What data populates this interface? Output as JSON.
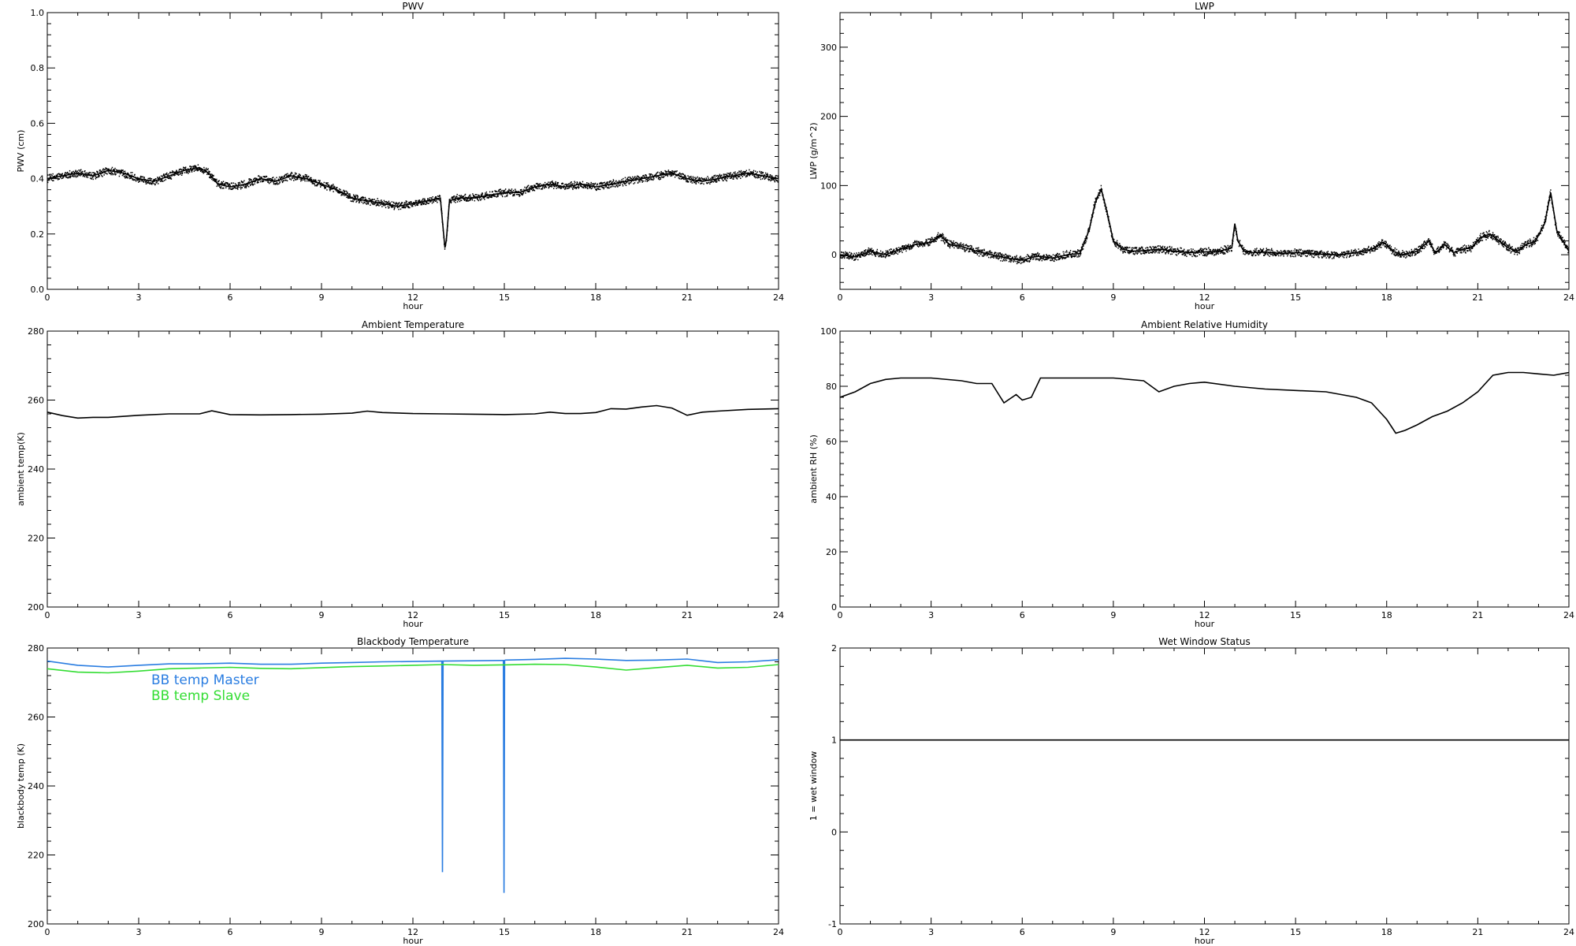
{
  "chart_data": [
    {
      "type": "scatter",
      "title": "PWV",
      "xlabel": "hour",
      "ylabel": "PWV (cm)",
      "xlim": [
        0,
        24
      ],
      "ylim": [
        0.0,
        1.0
      ],
      "xticks": [
        "0",
        "3",
        "6",
        "9",
        "12",
        "15",
        "18",
        "21",
        "24"
      ],
      "yticks": [
        "0.0",
        "0.2",
        "0.4",
        "0.6",
        "0.8",
        "1.0"
      ],
      "grid": false,
      "color": "#000000",
      "series": [
        {
          "x": [
            0,
            0.5,
            1,
            1.5,
            2,
            2.5,
            3,
            3.5,
            4,
            4.5,
            5,
            5.3,
            5.6,
            6,
            6.5,
            7,
            7.5,
            8,
            8.5,
            9,
            9.5,
            10,
            10.5,
            11,
            11.5,
            12,
            12.5,
            12.9,
            13.05,
            13.1,
            13.2,
            13.5,
            14,
            14.5,
            15,
            15.5,
            16,
            16.5,
            17,
            17.5,
            18,
            18.5,
            19,
            19.5,
            20,
            20.5,
            21,
            21.5,
            22,
            22.5,
            23,
            23.5,
            24
          ],
          "y": [
            0.4,
            0.41,
            0.42,
            0.41,
            0.43,
            0.42,
            0.4,
            0.39,
            0.41,
            0.43,
            0.44,
            0.42,
            0.38,
            0.37,
            0.38,
            0.4,
            0.39,
            0.41,
            0.4,
            0.38,
            0.36,
            0.33,
            0.32,
            0.31,
            0.3,
            0.31,
            0.32,
            0.33,
            0.15,
            0.18,
            0.32,
            0.33,
            0.33,
            0.34,
            0.35,
            0.35,
            0.37,
            0.38,
            0.37,
            0.38,
            0.37,
            0.38,
            0.39,
            0.4,
            0.41,
            0.42,
            0.4,
            0.39,
            0.4,
            0.41,
            0.42,
            0.41,
            0.4
          ]
        }
      ]
    },
    {
      "type": "scatter",
      "title": "LWP",
      "xlabel": "hour",
      "ylabel": "LWP (g/m^2)",
      "xlim": [
        0,
        24
      ],
      "ylim": [
        -50,
        350
      ],
      "xticks": [
        "0",
        "3",
        "6",
        "9",
        "12",
        "15",
        "18",
        "21",
        "24"
      ],
      "yticks": [
        "0",
        "100",
        "200",
        "300"
      ],
      "grid": false,
      "color": "#000000",
      "series": [
        {
          "x": [
            0,
            0.5,
            1,
            1.5,
            2,
            2.5,
            3,
            3.3,
            3.6,
            4,
            4.5,
            5,
            5.5,
            6,
            6.5,
            7,
            7.5,
            7.9,
            8.2,
            8.4,
            8.6,
            8.8,
            9.0,
            9.3,
            9.6,
            10,
            10.5,
            11,
            11.5,
            12,
            12.5,
            12.9,
            13.0,
            13.1,
            13.3,
            13.6,
            14,
            14.5,
            15,
            15.5,
            16,
            16.5,
            17,
            17.5,
            17.9,
            18.2,
            18.5,
            19,
            19.4,
            19.6,
            19.9,
            20.2,
            20.5,
            20.8,
            21.1,
            21.4,
            21.7,
            22.0,
            22.3,
            22.6,
            22.9,
            23.2,
            23.4,
            23.6,
            23.8,
            24
          ],
          "y": [
            0,
            -3,
            5,
            0,
            8,
            15,
            18,
            28,
            15,
            12,
            5,
            0,
            -5,
            -8,
            -2,
            -5,
            0,
            2,
            35,
            75,
            95,
            60,
            20,
            8,
            5,
            6,
            8,
            5,
            3,
            4,
            5,
            10,
            45,
            20,
            5,
            3,
            4,
            2,
            3,
            2,
            0,
            0,
            3,
            8,
            18,
            5,
            0,
            5,
            20,
            2,
            15,
            3,
            8,
            10,
            25,
            30,
            20,
            10,
            5,
            15,
            20,
            45,
            90,
            35,
            20,
            5
          ]
        }
      ]
    },
    {
      "type": "line",
      "title": "Ambient Temperature",
      "xlabel": "hour",
      "ylabel": "ambient temp(K)",
      "xlim": [
        0,
        24
      ],
      "ylim": [
        200,
        280
      ],
      "xticks": [
        "0",
        "3",
        "6",
        "9",
        "12",
        "15",
        "18",
        "21",
        "24"
      ],
      "yticks": [
        "200",
        "220",
        "240",
        "260",
        "280"
      ],
      "grid": false,
      "color": "#000000",
      "series": [
        {
          "x": [
            0,
            0.5,
            1,
            1.5,
            2,
            3,
            4,
            5,
            5.4,
            6,
            7,
            8,
            9,
            10,
            10.5,
            11,
            12,
            13,
            14,
            15,
            16,
            16.5,
            17,
            17.5,
            18,
            18.5,
            19,
            19.5,
            20,
            20.5,
            21,
            21.5,
            22,
            23,
            24
          ],
          "y": [
            256.5,
            255.5,
            254.8,
            255.0,
            255.0,
            255.6,
            256.0,
            256.0,
            256.9,
            255.8,
            255.7,
            255.8,
            255.9,
            256.2,
            256.8,
            256.4,
            256.1,
            256.0,
            255.9,
            255.8,
            256.0,
            256.5,
            256.1,
            256.1,
            256.4,
            257.5,
            257.4,
            258.0,
            258.4,
            257.7,
            255.6,
            256.5,
            256.8,
            257.3,
            257.5
          ]
        }
      ]
    },
    {
      "type": "line",
      "title": "Ambient Relative Humidity",
      "xlabel": "hour",
      "ylabel": "ambient RH (%)",
      "xlim": [
        0,
        24
      ],
      "ylim": [
        0,
        100
      ],
      "xticks": [
        "0",
        "3",
        "6",
        "9",
        "12",
        "15",
        "18",
        "21",
        "24"
      ],
      "yticks": [
        "0",
        "20",
        "40",
        "60",
        "80",
        "100"
      ],
      "grid": false,
      "color": "#000000",
      "series": [
        {
          "x": [
            0,
            0.5,
            1,
            1.5,
            2,
            3,
            4,
            4.5,
            5,
            5.4,
            5.8,
            6,
            6.3,
            6.6,
            7,
            8,
            9,
            10,
            10.5,
            11,
            11.5,
            12,
            13,
            14,
            15,
            16,
            17,
            17.5,
            18,
            18.3,
            18.6,
            19,
            19.5,
            20,
            20.5,
            21,
            21.5,
            22,
            22.5,
            23,
            23.5,
            24
          ],
          "y": [
            76,
            78,
            81,
            82.5,
            83,
            83,
            82,
            81,
            81,
            74,
            77,
            75,
            76,
            83,
            83,
            83,
            83,
            82,
            78,
            80,
            81,
            81.5,
            80,
            79,
            78.5,
            78,
            76,
            74,
            68,
            63,
            64,
            66,
            69,
            71,
            74,
            78,
            84,
            85,
            85,
            84.5,
            84,
            85
          ]
        }
      ]
    },
    {
      "type": "line",
      "title": "Blackbody Temperature",
      "xlabel": "hour",
      "ylabel": "blackbody temp (K)",
      "xlim": [
        0,
        24
      ],
      "ylim": [
        200,
        280
      ],
      "xticks": [
        "0",
        "3",
        "6",
        "9",
        "12",
        "15",
        "18",
        "21",
        "24"
      ],
      "yticks": [
        "200",
        "220",
        "240",
        "260",
        "280"
      ],
      "grid": false,
      "legend": "upper-left",
      "series": [
        {
          "name": "BB temp Master",
          "color": "#2a7de1",
          "x": [
            0,
            1,
            2,
            3,
            4,
            5,
            6,
            7,
            8,
            9,
            10,
            11,
            12,
            12.95,
            12.97,
            12.99,
            13.0,
            14,
            14.97,
            14.99,
            15.01,
            15.03,
            16,
            17,
            18,
            19,
            20,
            21,
            22,
            23,
            24
          ],
          "y": [
            276.2,
            275.0,
            274.5,
            275.0,
            275.4,
            275.4,
            275.6,
            275.3,
            275.3,
            275.6,
            275.8,
            276.0,
            276.1,
            276.2,
            215.0,
            276.2,
            276.2,
            276.3,
            276.4,
            209.0,
            276.4,
            276.5,
            276.7,
            277.0,
            276.8,
            276.4,
            276.5,
            276.8,
            275.8,
            276.0,
            276.6
          ]
        },
        {
          "name": "BB temp Slave",
          "color": "#33dd33",
          "x": [
            0,
            1,
            2,
            3,
            4,
            5,
            6,
            7,
            8,
            9,
            10,
            11,
            12,
            13,
            14,
            15,
            16,
            17,
            18,
            19,
            20,
            21,
            22,
            23,
            24
          ],
          "y": [
            274.0,
            273.0,
            272.8,
            273.3,
            274.0,
            274.2,
            274.4,
            274.1,
            274.0,
            274.3,
            274.6,
            274.8,
            275.0,
            275.2,
            275.0,
            275.1,
            275.3,
            275.2,
            274.5,
            273.6,
            274.3,
            275.0,
            274.2,
            274.4,
            275.2
          ]
        }
      ]
    },
    {
      "type": "line",
      "title": "Wet Window Status",
      "xlabel": "hour",
      "ylabel": "1 = wet window",
      "xlim": [
        0,
        24
      ],
      "ylim": [
        -1,
        2
      ],
      "xticks": [
        "0",
        "3",
        "6",
        "9",
        "12",
        "15",
        "18",
        "21",
        "24"
      ],
      "yticks": [
        "-1",
        "0",
        "1",
        "2"
      ],
      "grid": false,
      "color": "#000000",
      "series": [
        {
          "x": [
            0,
            24
          ],
          "y": [
            1,
            1
          ]
        }
      ]
    }
  ]
}
